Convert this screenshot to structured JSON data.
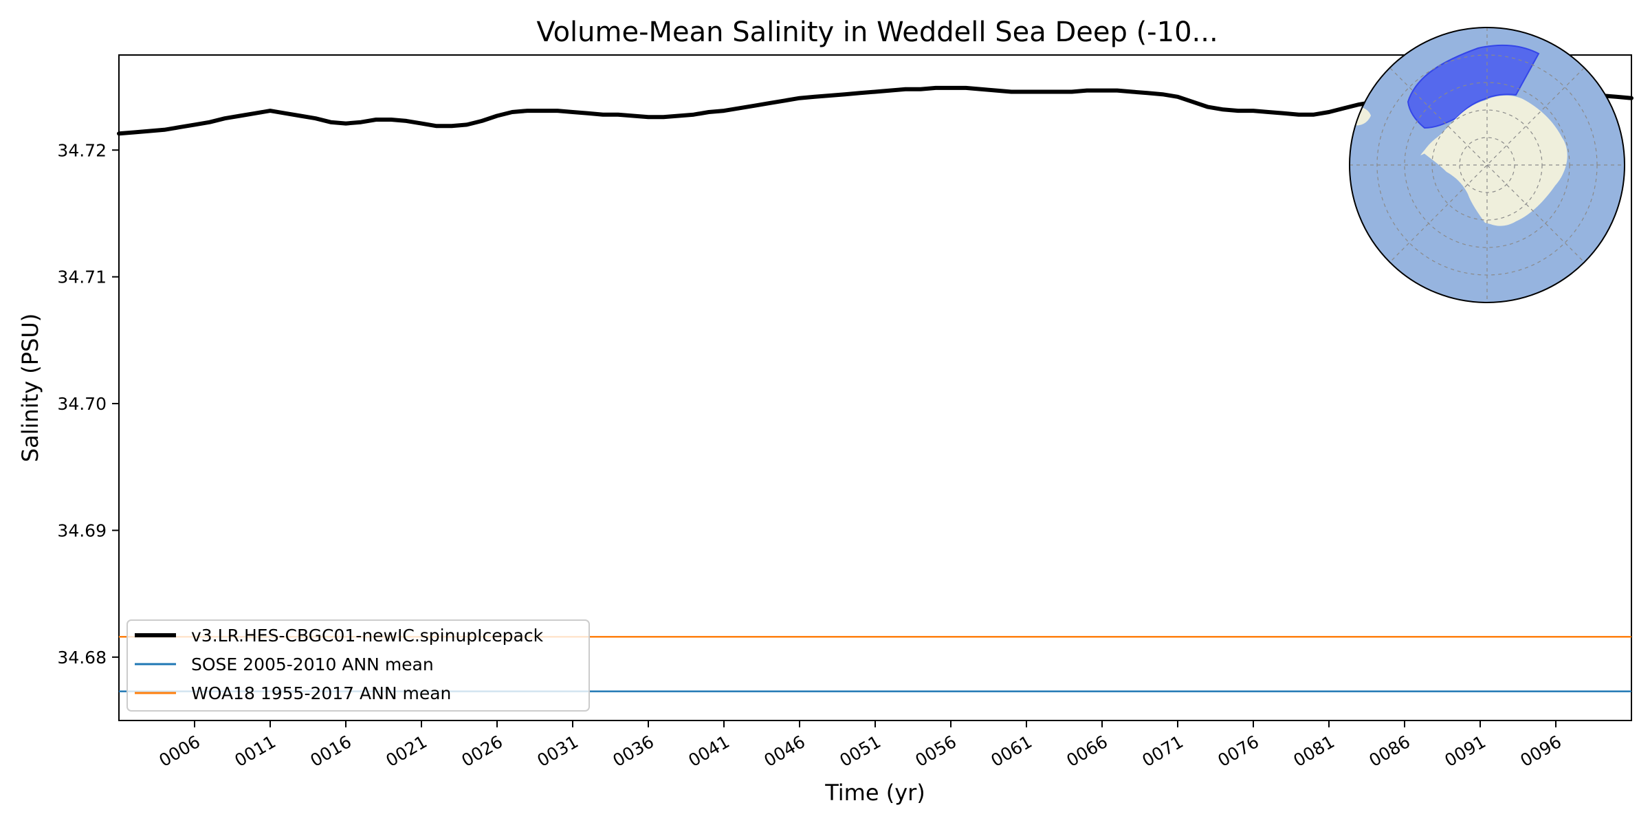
{
  "chart_data": {
    "type": "line",
    "title": "Volume-Mean Salinity in Weddell Sea Deep (-10...",
    "xlabel": "Time (yr)",
    "ylabel": "Salinity (PSU)",
    "xlim": [
      1,
      101
    ],
    "ylim": [
      34.675,
      34.7275
    ],
    "x_ticks": [
      6,
      11,
      16,
      21,
      26,
      31,
      36,
      41,
      46,
      51,
      56,
      61,
      66,
      71,
      76,
      81,
      86,
      91,
      96
    ],
    "x_tick_labels": [
      "0006",
      "0011",
      "0016",
      "0021",
      "0026",
      "0031",
      "0036",
      "0041",
      "0046",
      "0051",
      "0056",
      "0061",
      "0066",
      "0071",
      "0076",
      "0081",
      "0086",
      "0091",
      "0096"
    ],
    "y_ticks": [
      34.68,
      34.69,
      34.7,
      34.71,
      34.72
    ],
    "y_tick_labels": [
      "34.68",
      "34.69",
      "34.70",
      "34.71",
      "34.72"
    ],
    "grid": false,
    "legend_position": "lower-left",
    "series": [
      {
        "name": "v3.LR.HES-CBGC01-newIC.spinupIcepack",
        "color": "#000000",
        "style": "thick-line",
        "x": [
          1,
          2,
          3,
          4,
          5,
          6,
          7,
          8,
          9,
          10,
          11,
          12,
          13,
          14,
          15,
          16,
          17,
          18,
          19,
          20,
          21,
          22,
          23,
          24,
          25,
          26,
          27,
          28,
          29,
          30,
          31,
          32,
          33,
          34,
          35,
          36,
          37,
          38,
          39,
          40,
          41,
          42,
          43,
          44,
          45,
          46,
          47,
          48,
          49,
          50,
          51,
          52,
          53,
          54,
          55,
          56,
          57,
          58,
          59,
          60,
          61,
          62,
          63,
          64,
          65,
          66,
          67,
          68,
          69,
          70,
          71,
          72,
          73,
          74,
          75,
          76,
          77,
          78,
          79,
          80,
          81,
          82,
          83,
          84,
          85,
          86,
          87,
          88,
          89,
          90,
          91,
          92,
          93,
          94,
          95,
          96,
          97,
          98,
          99,
          100,
          101
        ],
        "values": [
          34.7213,
          34.7214,
          34.7215,
          34.7216,
          34.7218,
          34.722,
          34.7222,
          34.7225,
          34.7227,
          34.7229,
          34.7231,
          34.7229,
          34.7227,
          34.7225,
          34.7222,
          34.7221,
          34.7222,
          34.7224,
          34.7224,
          34.7223,
          34.7221,
          34.7219,
          34.7219,
          34.722,
          34.7223,
          34.7227,
          34.723,
          34.7231,
          34.7231,
          34.7231,
          34.723,
          34.7229,
          34.7228,
          34.7228,
          34.7227,
          34.7226,
          34.7226,
          34.7227,
          34.7228,
          34.723,
          34.7231,
          34.7233,
          34.7235,
          34.7237,
          34.7239,
          34.7241,
          34.7242,
          34.7243,
          34.7244,
          34.7245,
          34.7246,
          34.7247,
          34.7248,
          34.7248,
          34.7249,
          34.7249,
          34.7249,
          34.7248,
          34.7247,
          34.7246,
          34.7246,
          34.7246,
          34.7246,
          34.7246,
          34.7247,
          34.7247,
          34.7247,
          34.7246,
          34.7245,
          34.7244,
          34.7242,
          34.7238,
          34.7234,
          34.7232,
          34.7231,
          34.7231,
          34.723,
          34.7229,
          34.7228,
          34.7228,
          34.723,
          34.7233,
          34.7236,
          34.7238,
          34.7239,
          34.7239,
          34.724,
          34.724,
          34.7241,
          34.7242,
          34.7243,
          34.7243,
          34.7243,
          34.7243,
          34.7244,
          34.7244,
          34.7244,
          34.7243,
          34.7243,
          34.7242,
          34.7241
        ]
      },
      {
        "name": "SOSE 2005-2010 ANN mean",
        "color": "#1f77b4",
        "style": "horizontal-line",
        "value": 34.6773
      },
      {
        "name": "WOA18 1955-2017 ANN mean",
        "color": "#ff7f0e",
        "style": "horizontal-line",
        "value": 34.6816
      }
    ],
    "inset_map": {
      "type": "south-polar-stereographic",
      "position": "top-right",
      "ocean_color": "#96b4df",
      "land_color": "#efefdc",
      "region_color": "#4a5cf0"
    }
  }
}
